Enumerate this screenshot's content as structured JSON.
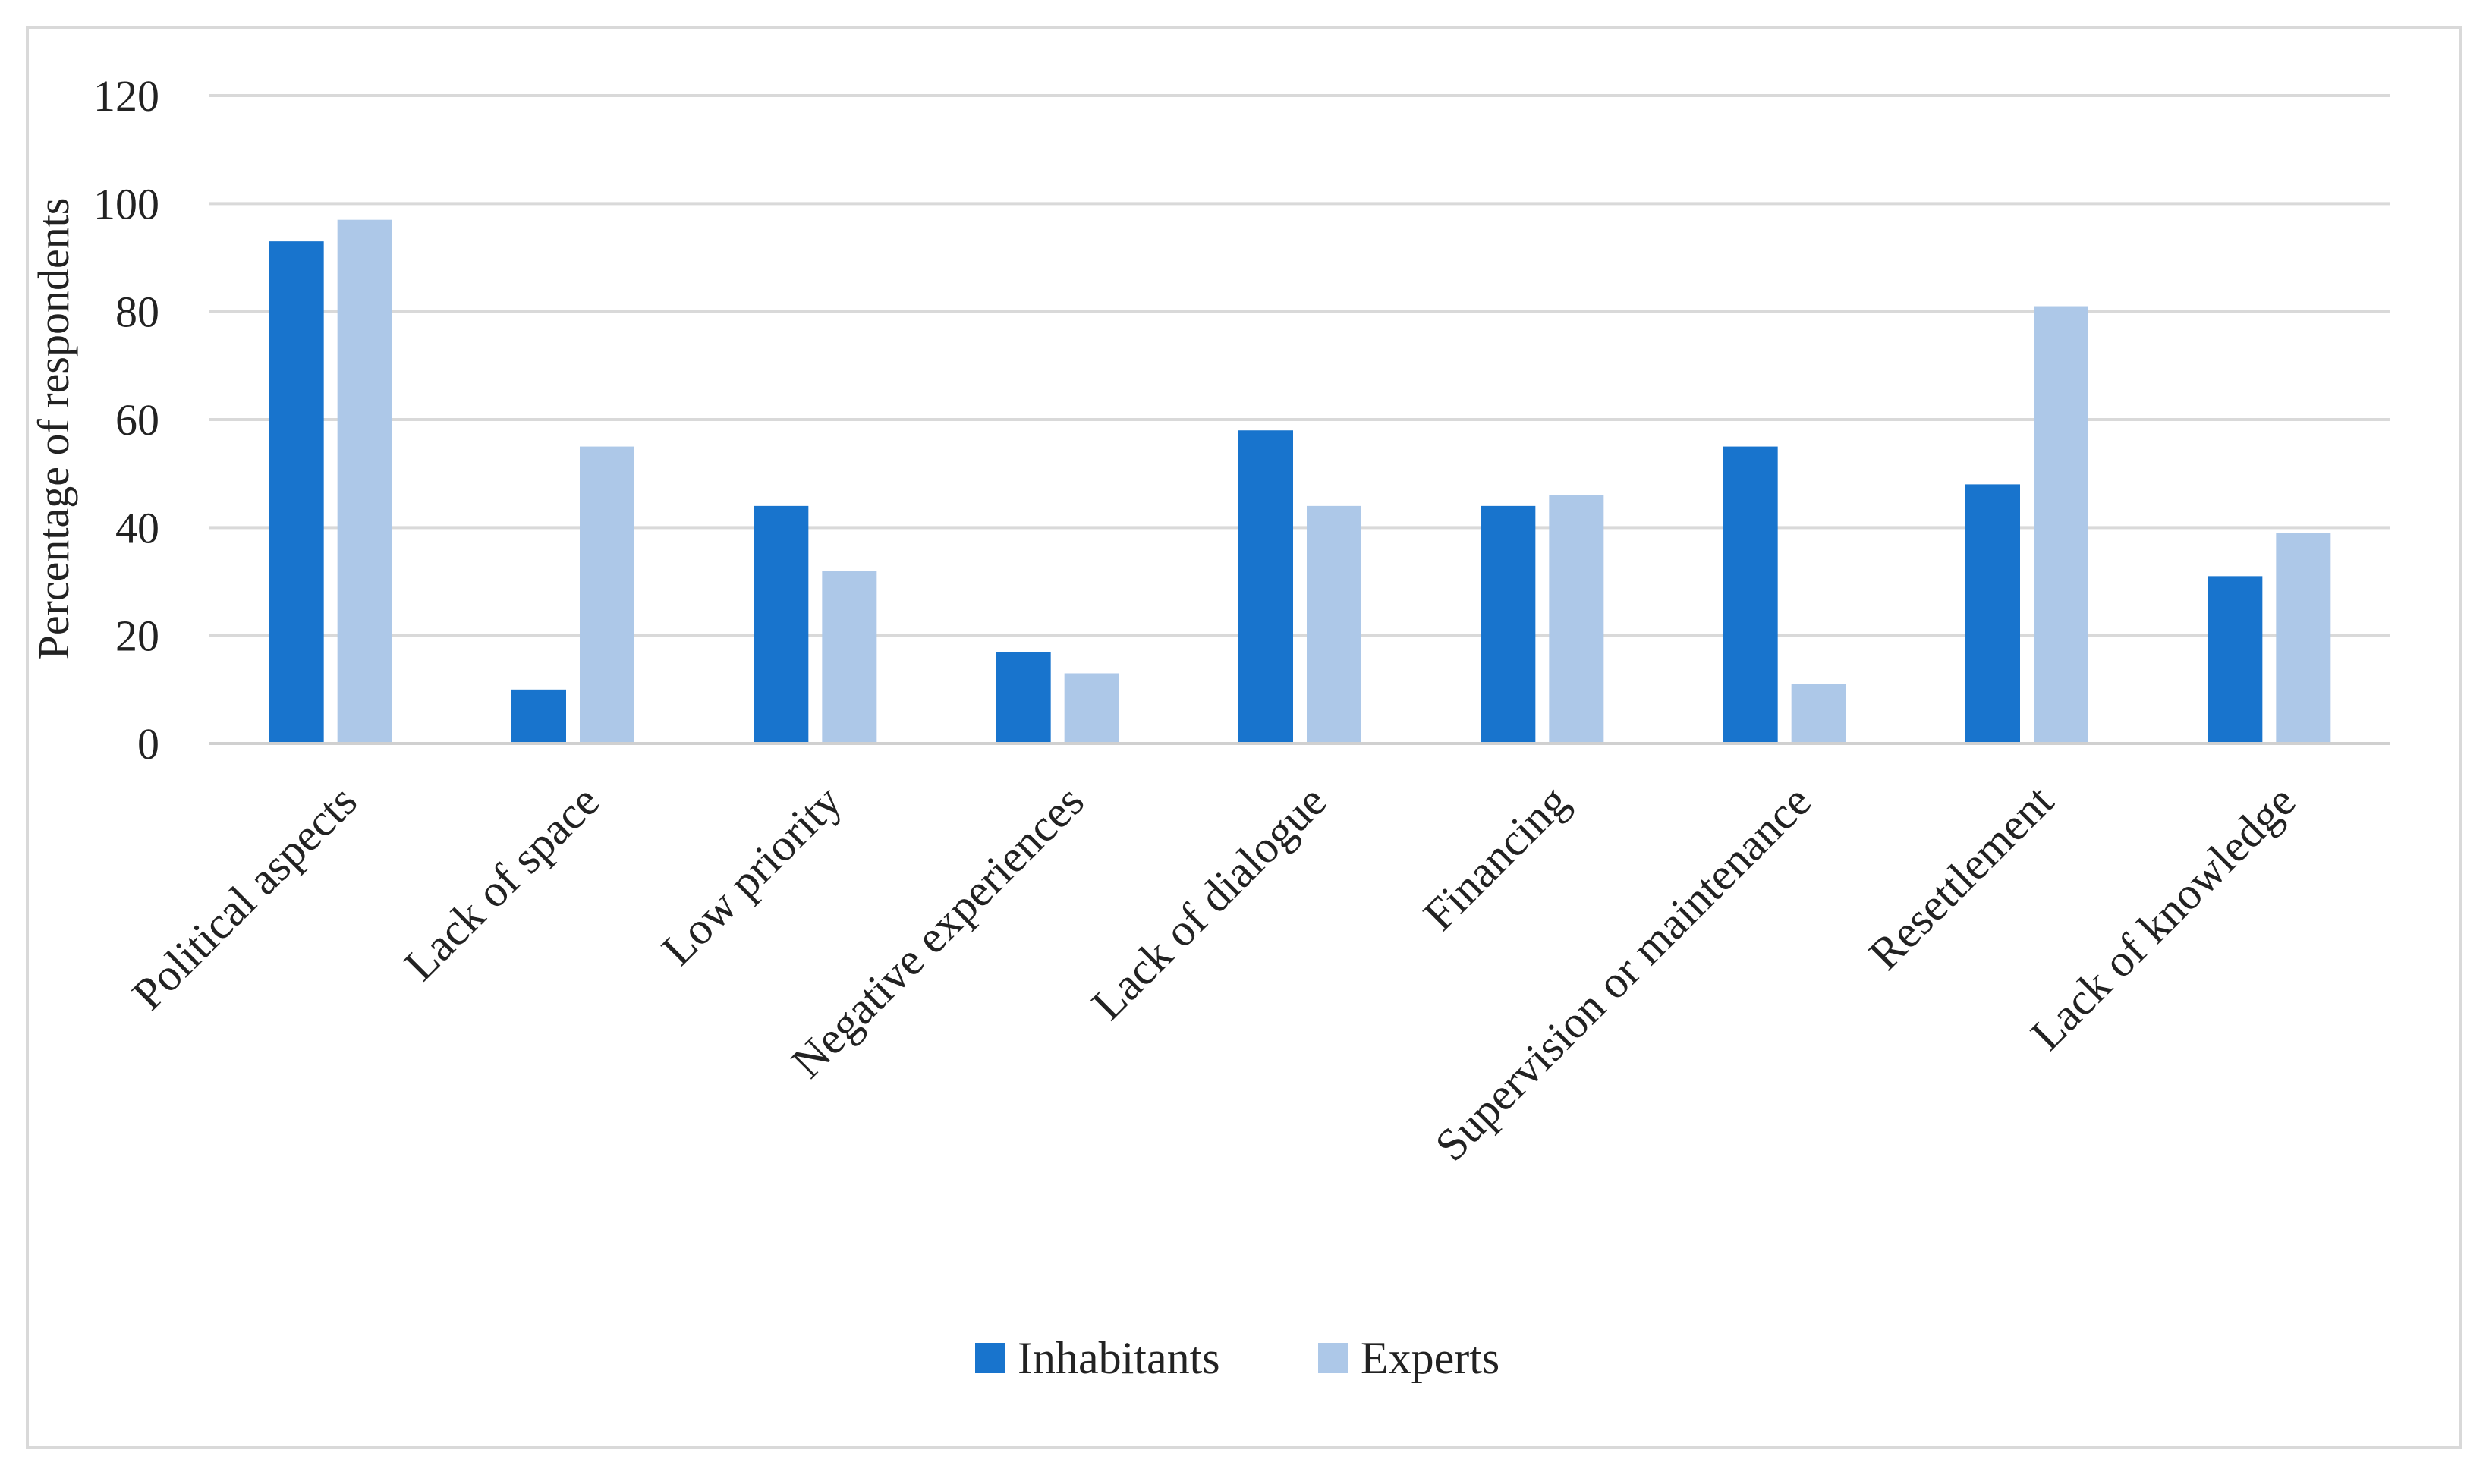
{
  "chart_data": {
    "type": "bar",
    "title": "",
    "xlabel": "",
    "ylabel": "Percentage of respondents",
    "ylim": [
      0,
      120
    ],
    "yticks": [
      0,
      20,
      40,
      60,
      80,
      100,
      120
    ],
    "grid": true,
    "legend_position": "bottom-center",
    "categories": [
      "Political aspects",
      "Lack of space",
      "Low priority",
      "Negative experiences",
      "Lack of dialogue",
      "Financing",
      "Supervision or maintenance",
      "Resettlement",
      "Lack of knowledge"
    ],
    "series": [
      {
        "name": "Inhabitants",
        "color": "#1874CD",
        "values": [
          93,
          10,
          44,
          17,
          58,
          44,
          55,
          48,
          31
        ]
      },
      {
        "name": "Experts",
        "color": "#ADC8E8",
        "values": [
          97,
          55,
          32,
          13,
          44,
          46,
          11,
          81,
          39
        ]
      }
    ]
  }
}
